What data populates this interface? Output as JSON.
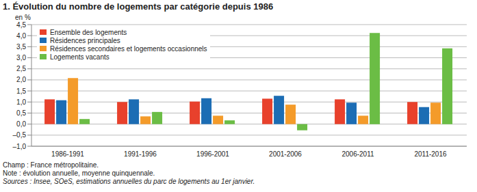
{
  "chart_data": {
    "type": "bar",
    "title": "1. Évolution du nombre de logements par catégorie depuis 1986",
    "y_label": "en %",
    "categories": [
      "1986-1991",
      "1991-1996",
      "1996-2001",
      "2001-2006",
      "2006-2011",
      "2011-2016"
    ],
    "series": [
      {
        "name": "Ensemble des logements",
        "color": "#e8412c",
        "values": [
          1.12,
          1.0,
          1.02,
          1.15,
          1.12,
          1.0
        ]
      },
      {
        "name": "Résidences principales",
        "color": "#1c6db4",
        "values": [
          1.08,
          1.12,
          1.17,
          1.28,
          0.97,
          0.77
        ]
      },
      {
        "name": "Résidences secondaires et logements occasionnels",
        "color": "#f49b2a",
        "values": [
          2.08,
          0.35,
          0.38,
          0.88,
          0.38,
          0.97
        ]
      },
      {
        "name": "Logements vacants",
        "color": "#6bbd45",
        "values": [
          0.23,
          0.55,
          0.17,
          -0.28,
          4.12,
          3.43
        ]
      }
    ],
    "ylim": [
      -1.0,
      4.5
    ],
    "yticks": [
      {
        "value": -1.0,
        "label": "–1,0"
      },
      {
        "value": -0.5,
        "label": "–0,5"
      },
      {
        "value": 0,
        "label": "0,0"
      },
      {
        "value": 0.5,
        "label": "0,5"
      },
      {
        "value": 1.0,
        "label": "1,0"
      },
      {
        "value": 1.5,
        "label": "1,5"
      },
      {
        "value": 2.0,
        "label": "2,0"
      },
      {
        "value": 2.5,
        "label": "2,5"
      },
      {
        "value": 3.0,
        "label": "3,0"
      },
      {
        "value": 3.5,
        "label": "3,5"
      },
      {
        "value": 4.0,
        "label": "4,0"
      },
      {
        "value": 4.5,
        "label": "4,5"
      }
    ],
    "grid": true,
    "legend": "top-left",
    "notes": [
      "Champ : France métropolitaine.",
      "Note : évolution annuelle, moyenne quinquennale.",
      "Sources : Insee, SOeS, estimations annuelles du parc de logements au 1er janvier."
    ]
  }
}
